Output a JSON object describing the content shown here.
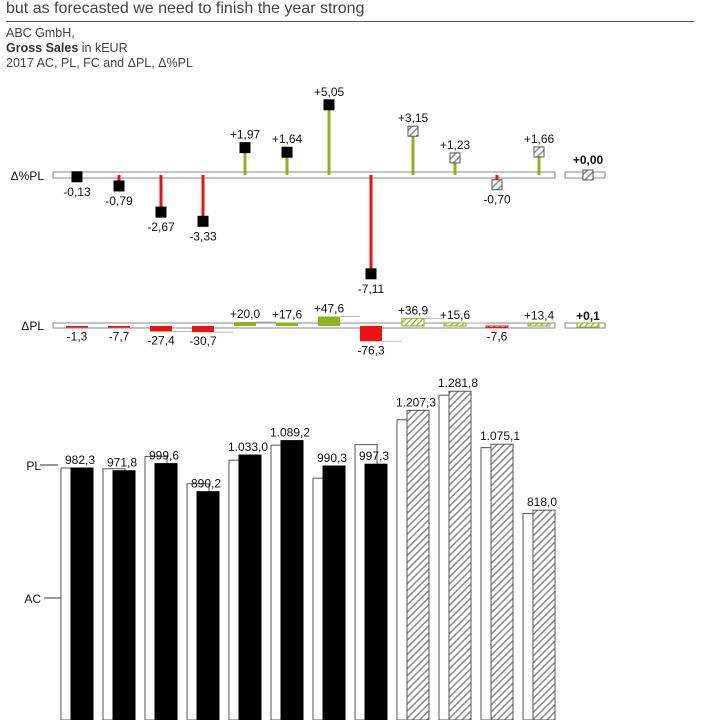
{
  "header": {
    "headline": "but as forecasted we need to finish the year strong",
    "company": "ABC GmbH,",
    "measure": "Gross Sales",
    "unit": "in kEUR",
    "scenario": "2017 AC, PL, FC and ΔPL, Δ%PL"
  },
  "colors": {
    "actual": "#000000",
    "forecast_hatch": "#9a9a9a",
    "positive": "#8db31e",
    "negative": "#ee1111",
    "axis": "#888888"
  },
  "chart_data": [
    {
      "type": "pin",
      "row_label": "Δ%PL",
      "months": 12,
      "kind": [
        "AC",
        "AC",
        "AC",
        "AC",
        "AC",
        "AC",
        "AC",
        "AC",
        "FC",
        "FC",
        "FC",
        "FC"
      ],
      "values": [
        -0.13,
        -0.79,
        -2.67,
        -3.33,
        1.97,
        1.64,
        5.05,
        -7.11,
        3.15,
        1.23,
        -0.7,
        1.66
      ],
      "labels": [
        "-0,13",
        "-0,79",
        "-2,67",
        "-3,33",
        "+1,97",
        "+1,64",
        "+5,05",
        "-7,11",
        "+3,15",
        "+1,23",
        "-0,70",
        "+1,66"
      ],
      "total": 0.0,
      "total_label": "+0,00"
    },
    {
      "type": "bar",
      "row_label": "ΔPL",
      "kind": [
        "AC",
        "AC",
        "AC",
        "AC",
        "AC",
        "AC",
        "AC",
        "AC",
        "FC",
        "FC",
        "FC",
        "FC"
      ],
      "values": [
        -1.3,
        -7.7,
        -27.4,
        -30.7,
        20.0,
        17.6,
        47.6,
        -76.3,
        36.9,
        15.6,
        -7.6,
        13.4
      ],
      "labels": [
        "-1,3",
        "-7,7",
        "-27,4",
        "-30,7",
        "+20,0",
        "+17,6",
        "+47,6",
        "-76,3",
        "+36,9",
        "+15,6",
        "-7,6",
        "+13,4"
      ],
      "total": 0.1,
      "total_label": "+0,1"
    },
    {
      "type": "bar",
      "axis_labels": [
        "PL",
        "AC"
      ],
      "kind": [
        "AC",
        "AC",
        "AC",
        "AC",
        "AC",
        "AC",
        "AC",
        "AC",
        "FC",
        "FC",
        "FC",
        "FC"
      ],
      "values": [
        982.3,
        971.8,
        999.6,
        890.2,
        1033.0,
        1089.2,
        990.3,
        997.3,
        null,
        1281.8,
        1075.1,
        818.0
      ],
      "labels": [
        "982,3",
        "971,8",
        "999,6",
        "890,2",
        "1.033,0",
        "1.089,2",
        "990,3",
        "997,3",
        "1.207,3",
        "1.281,8",
        "1.075,1",
        "818,0"
      ],
      "plan_values": [
        982.4,
        979.5,
        1027.0,
        920.9,
        1013.0,
        1071.6,
        942.7,
        1073.6,
        1170.4,
        1266.2,
        1061.7,
        804.6
      ],
      "fc_values": [
        null,
        null,
        null,
        null,
        null,
        null,
        null,
        null,
        1207.3,
        1281.8,
        1075.1,
        818.0
      ]
    }
  ]
}
